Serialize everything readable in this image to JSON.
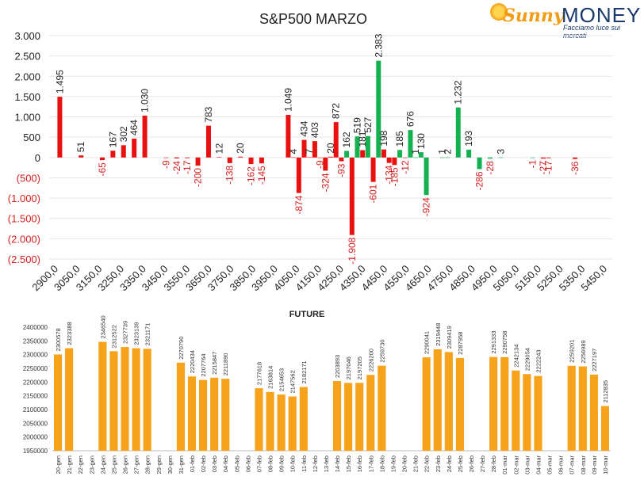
{
  "brand": {
    "name_part1": "Sunny",
    "name_part2": "MONEY",
    "tagline": "Facciamo luce sui mercati"
  },
  "chart_data": [
    {
      "type": "bar",
      "title": "S&P500 MARZO",
      "xlabel": "",
      "ylabel": "",
      "ylim": [
        -2500,
        3000
      ],
      "y_ticks": [
        {
          "value": 3000,
          "label": "3.000"
        },
        {
          "value": 2500,
          "label": "2.500"
        },
        {
          "value": 2000,
          "label": "2.000"
        },
        {
          "value": 1500,
          "label": "1.500"
        },
        {
          "value": 1000,
          "label": "1.000"
        },
        {
          "value": 500,
          "label": "500"
        },
        {
          "value": 0,
          "label": "0"
        },
        {
          "value": -500,
          "label": "(500)"
        },
        {
          "value": -1000,
          "label": "(1.000)"
        },
        {
          "value": -1500,
          "label": "(1.500)"
        },
        {
          "value": -2000,
          "label": "(2.000)"
        },
        {
          "value": -2500,
          "label": "(2.500)"
        }
      ],
      "x_tick_labels": [
        "2900,0",
        "3050,0",
        "3150,0",
        "3250,0",
        "3350,0",
        "3450,0",
        "3550,0",
        "3650,0",
        "3750,0",
        "3850,0",
        "3950,0",
        "4050,0",
        "4150,0",
        "4250,0",
        "4350,0",
        "4450,0",
        "4550,0",
        "4650,0",
        "4750,0",
        "4850,0",
        "4950,0",
        "5050,0",
        "5150,0",
        "5250,0",
        "5350,0",
        "5450,0"
      ],
      "grid": true,
      "legend": "none",
      "colors": {
        "red": "#e8110f",
        "green": "#15b050",
        "red_label": "#d62020",
        "text": "#222222"
      },
      "series": [
        {
          "points": [
            {
              "x": 2900,
              "value": 1495,
              "label": "1.495",
              "color": "red"
            },
            {
              "x": 3000,
              "value": 51,
              "label": "51",
              "color": "red"
            },
            {
              "x": 3100,
              "value": -65,
              "label": "-65",
              "color": "red"
            },
            {
              "x": 3150,
              "value": 167,
              "label": "167",
              "color": "red"
            },
            {
              "x": 3200,
              "value": 302,
              "label": "302",
              "color": "red"
            },
            {
              "x": 3250,
              "value": 464,
              "label": "464",
              "color": "red"
            },
            {
              "x": 3300,
              "value": 1030,
              "label": "1.030",
              "color": "red"
            },
            {
              "x": 3400,
              "value": -9,
              "label": "-9",
              "color": "red"
            },
            {
              "x": 3450,
              "value": -24,
              "label": "-24",
              "color": "red"
            },
            {
              "x": 3500,
              "value": -17,
              "label": "-17",
              "color": "red"
            },
            {
              "x": 3550,
              "value": -200,
              "label": "-200",
              "color": "red"
            },
            {
              "x": 3600,
              "value": 783,
              "label": "783",
              "color": "red"
            },
            {
              "x": 3650,
              "value": 12,
              "label": "12",
              "color": "red"
            },
            {
              "x": 3700,
              "value": -138,
              "label": "-138",
              "color": "red"
            },
            {
              "x": 3750,
              "value": 20,
              "label": "20",
              "color": "red"
            },
            {
              "x": 3800,
              "value": -162,
              "label": "-162",
              "color": "red"
            },
            {
              "x": 3850,
              "value": -145,
              "label": "-145",
              "color": "red"
            },
            {
              "x": 3975,
              "value": 1049,
              "label": "1.049",
              "color": "red"
            },
            {
              "x": 4000,
              "value": 4,
              "label": "4",
              "color": "red"
            },
            {
              "x": 4025,
              "value": -874,
              "label": "-874",
              "color": "red"
            },
            {
              "x": 4050,
              "value": 434,
              "label": "434",
              "color": "red"
            },
            {
              "x": 4075,
              "value": 7,
              "label": "7",
              "color": "red"
            },
            {
              "x": 4100,
              "value": 403,
              "label": "403",
              "color": "red"
            },
            {
              "x": 4125,
              "value": -9,
              "label": "-9",
              "color": "red"
            },
            {
              "x": 4150,
              "value": -324,
              "label": "-324",
              "color": "red"
            },
            {
              "x": 4175,
              "value": 20,
              "label": "20",
              "color": "red"
            },
            {
              "x": 4200,
              "value": 872,
              "label": "872",
              "color": "red"
            },
            {
              "x": 4225,
              "value": -93,
              "label": "-93",
              "color": "red"
            },
            {
              "x": 4250,
              "value": 162,
              "label": "162",
              "color": "green"
            },
            {
              "x": 4275,
              "value": -1908,
              "label": "-1.908",
              "color": "red"
            },
            {
              "x": 4300,
              "value": 519,
              "label": "519",
              "color": "green"
            },
            {
              "x": 4325,
              "value": 181,
              "label": "181",
              "color": "red"
            },
            {
              "x": 4350,
              "value": 527,
              "label": "527",
              "color": "green"
            },
            {
              "x": 4375,
              "value": -601,
              "label": "-601",
              "color": "red"
            },
            {
              "x": 4400,
              "value": 2383,
              "label": "2.383",
              "color": "green"
            },
            {
              "x": 4425,
              "value": 198,
              "label": "198",
              "color": "red"
            },
            {
              "x": 4450,
              "value": -134,
              "label": "-134",
              "color": "red"
            },
            {
              "x": 4475,
              "value": -185,
              "label": "-185",
              "color": "red"
            },
            {
              "x": 4500,
              "value": 185,
              "label": "185",
              "color": "green"
            },
            {
              "x": 4525,
              "value": -12,
              "label": "-12",
              "color": "red"
            },
            {
              "x": 4550,
              "value": 676,
              "label": "676",
              "color": "green"
            },
            {
              "x": 4575,
              "value": 1,
              "label": "1",
              "color": "green"
            },
            {
              "x": 4600,
              "value": 130,
              "label": "130",
              "color": "green"
            },
            {
              "x": 4625,
              "value": -924,
              "label": "-924",
              "color": "green"
            },
            {
              "x": 4700,
              "value": 1,
              "label": "1",
              "color": "green"
            },
            {
              "x": 4725,
              "value": 2,
              "label": "2",
              "color": "green"
            },
            {
              "x": 4775,
              "value": 1232,
              "label": "1.232",
              "color": "green"
            },
            {
              "x": 4825,
              "value": 193,
              "label": "193",
              "color": "green"
            },
            {
              "x": 4875,
              "value": -286,
              "label": "-286",
              "color": "green"
            },
            {
              "x": 4925,
              "value": -28,
              "label": "-28",
              "color": "green"
            },
            {
              "x": 4975,
              "value": 3,
              "label": "3",
              "color": "green"
            },
            {
              "x": 5125,
              "value": -1,
              "label": "-1",
              "color": "green"
            },
            {
              "x": 5175,
              "value": -27,
              "label": "-27",
              "color": "red"
            },
            {
              "x": 5200,
              "value": -17,
              "label": "-17",
              "color": "red"
            },
            {
              "x": 5325,
              "value": -36,
              "label": "-36",
              "color": "red"
            }
          ]
        }
      ]
    },
    {
      "type": "bar",
      "title": "FUTURE",
      "xlabel": "",
      "ylabel": "",
      "ylim": [
        1950000,
        2400000
      ],
      "y_ticks": [
        {
          "value": 2400000,
          "label": "2400000"
        },
        {
          "value": 2350000,
          "label": "2350000"
        },
        {
          "value": 2300000,
          "label": "2300000"
        },
        {
          "value": 2250000,
          "label": "2250000"
        },
        {
          "value": 2200000,
          "label": "2200000"
        },
        {
          "value": 2150000,
          "label": "2150000"
        },
        {
          "value": 2100000,
          "label": "2100000"
        },
        {
          "value": 2050000,
          "label": "2050000"
        },
        {
          "value": 2000000,
          "label": "2000000"
        },
        {
          "value": 1950000,
          "label": "1950000"
        }
      ],
      "grid": false,
      "legend": "none",
      "colors": {
        "bar": "#f7a21b",
        "text": "#333333"
      },
      "categories": [
        "20-gen",
        "21-gen",
        "22-gen",
        "23-gen",
        "24-gen",
        "25-gen",
        "26-gen",
        "27-gen",
        "28-gen",
        "29-gen",
        "30-gen",
        "31-gen",
        "01-feb",
        "02-feb",
        "03-feb",
        "04-feb",
        "05-feb",
        "06-feb",
        "07-feb",
        "08-feb",
        "09-feb",
        "10-feb",
        "11-feb",
        "12-feb",
        "13-feb",
        "14-feb",
        "15-feb",
        "16-feb",
        "17-feb",
        "18-feb",
        "19-feb",
        "20-feb",
        "21-feb",
        "22-feb",
        "23-feb",
        "24-feb",
        "25-feb",
        "26-feb",
        "27-feb",
        "28-feb",
        "01-mar",
        "02-mar",
        "03-mar",
        "04-mar",
        "05-mar",
        "06-mar",
        "07-mar",
        "08-mar",
        "09-mar",
        "10-mar"
      ],
      "values": [
        2300578,
        2323388,
        null,
        null,
        2346540,
        2312522,
        2327739,
        2323139,
        2321171,
        null,
        null,
        2270790,
        2220434,
        2207764,
        2215847,
        2211890,
        null,
        null,
        2177618,
        2163814,
        2154653,
        2147562,
        2182171,
        null,
        null,
        2203893,
        2197046,
        2197205,
        2226200,
        2259730,
        null,
        null,
        null,
        2290041,
        2319448,
        2309419,
        2287958,
        null,
        null,
        2291333,
        2290758,
        2242134,
        2229054,
        2222243,
        null,
        null,
        2259201,
        2256989,
        2227197,
        2112835
      ]
    }
  ]
}
